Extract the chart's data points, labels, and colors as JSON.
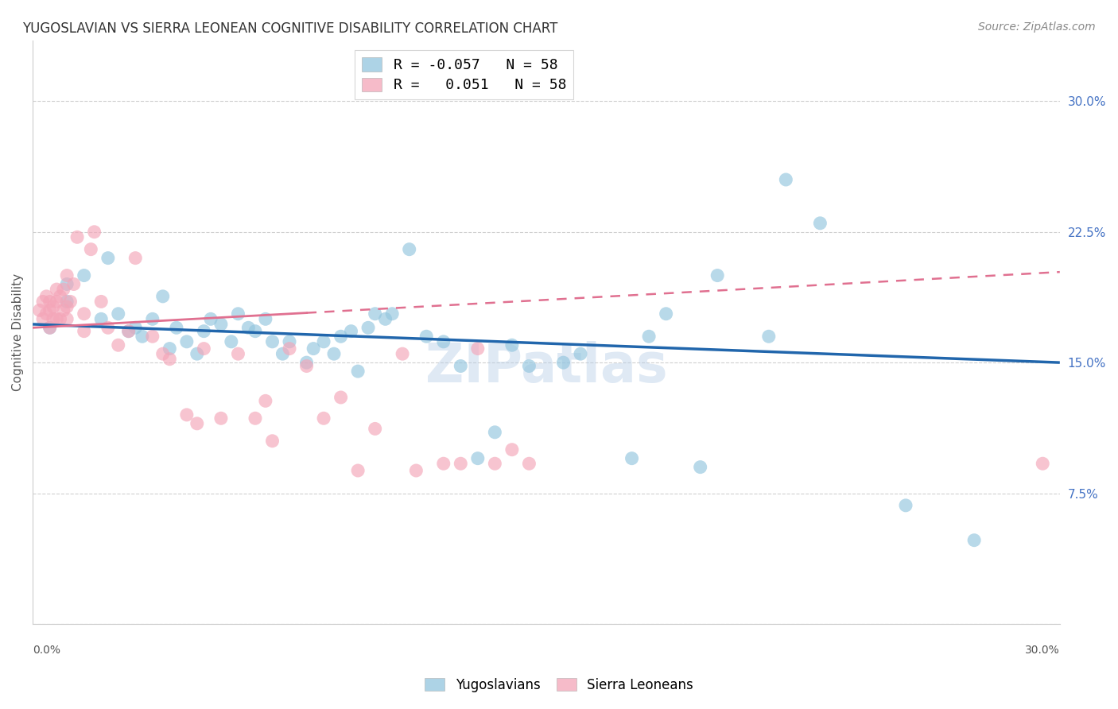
{
  "title": "YUGOSLAVIAN VS SIERRA LEONEAN COGNITIVE DISABILITY CORRELATION CHART",
  "source": "Source: ZipAtlas.com",
  "ylabel": "Cognitive Disability",
  "xlim": [
    0.0,
    0.3
  ],
  "ylim": [
    0.0,
    0.335
  ],
  "right_yticks": [
    0.075,
    0.15,
    0.225,
    0.3
  ],
  "right_yticklabels": [
    "7.5%",
    "15.0%",
    "22.5%",
    "30.0%"
  ],
  "blue_color": "#92c5de",
  "pink_color": "#f4a5b8",
  "blue_line_color": "#2166ac",
  "pink_line_color": "#e07090",
  "watermark": "ZIPatlas",
  "legend_label_blue": "R = -0.057   N = 58",
  "legend_label_pink": "R =   0.051   N = 58",
  "blue_trend_x": [
    0.0,
    0.3
  ],
  "blue_trend_y": [
    0.172,
    0.15
  ],
  "pink_trend_x": [
    0.0,
    0.3
  ],
  "pink_trend_y": [
    0.17,
    0.202
  ],
  "blue_x": [
    0.005,
    0.01,
    0.01,
    0.015,
    0.02,
    0.022,
    0.025,
    0.028,
    0.03,
    0.032,
    0.035,
    0.038,
    0.04,
    0.042,
    0.045,
    0.048,
    0.05,
    0.052,
    0.055,
    0.058,
    0.06,
    0.063,
    0.065,
    0.068,
    0.07,
    0.073,
    0.075,
    0.08,
    0.082,
    0.085,
    0.088,
    0.09,
    0.093,
    0.095,
    0.098,
    0.1,
    0.103,
    0.105,
    0.11,
    0.115,
    0.12,
    0.125,
    0.13,
    0.135,
    0.14,
    0.145,
    0.155,
    0.16,
    0.175,
    0.18,
    0.185,
    0.195,
    0.2,
    0.215,
    0.22,
    0.23,
    0.255,
    0.275
  ],
  "blue_y": [
    0.17,
    0.185,
    0.195,
    0.2,
    0.175,
    0.21,
    0.178,
    0.168,
    0.17,
    0.165,
    0.175,
    0.188,
    0.158,
    0.17,
    0.162,
    0.155,
    0.168,
    0.175,
    0.172,
    0.162,
    0.178,
    0.17,
    0.168,
    0.175,
    0.162,
    0.155,
    0.162,
    0.15,
    0.158,
    0.162,
    0.155,
    0.165,
    0.168,
    0.145,
    0.17,
    0.178,
    0.175,
    0.178,
    0.215,
    0.165,
    0.162,
    0.148,
    0.095,
    0.11,
    0.16,
    0.148,
    0.15,
    0.155,
    0.095,
    0.165,
    0.178,
    0.09,
    0.2,
    0.165,
    0.255,
    0.23,
    0.068,
    0.048
  ],
  "pink_x": [
    0.002,
    0.003,
    0.003,
    0.004,
    0.004,
    0.005,
    0.005,
    0.005,
    0.006,
    0.006,
    0.007,
    0.007,
    0.007,
    0.008,
    0.008,
    0.009,
    0.009,
    0.01,
    0.01,
    0.01,
    0.011,
    0.012,
    0.013,
    0.015,
    0.015,
    0.017,
    0.018,
    0.02,
    0.022,
    0.025,
    0.028,
    0.03,
    0.035,
    0.038,
    0.04,
    0.045,
    0.048,
    0.05,
    0.055,
    0.06,
    0.065,
    0.068,
    0.07,
    0.075,
    0.08,
    0.085,
    0.09,
    0.095,
    0.1,
    0.108,
    0.112,
    0.12,
    0.125,
    0.13,
    0.135,
    0.14,
    0.145,
    0.295
  ],
  "pink_y": [
    0.18,
    0.175,
    0.185,
    0.178,
    0.188,
    0.17,
    0.18,
    0.185,
    0.175,
    0.182,
    0.175,
    0.185,
    0.192,
    0.175,
    0.188,
    0.18,
    0.192,
    0.175,
    0.182,
    0.2,
    0.185,
    0.195,
    0.222,
    0.168,
    0.178,
    0.215,
    0.225,
    0.185,
    0.17,
    0.16,
    0.168,
    0.21,
    0.165,
    0.155,
    0.152,
    0.12,
    0.115,
    0.158,
    0.118,
    0.155,
    0.118,
    0.128,
    0.105,
    0.158,
    0.148,
    0.118,
    0.13,
    0.088,
    0.112,
    0.155,
    0.088,
    0.092,
    0.092,
    0.158,
    0.092,
    0.1,
    0.092,
    0.092
  ]
}
